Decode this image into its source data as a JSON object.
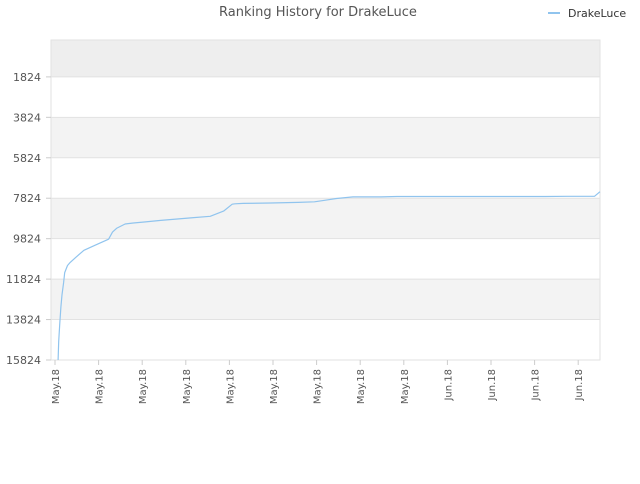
{
  "chart_data": {
    "type": "line",
    "title": "Ranking History for DrakeLuce",
    "legend_position": "top-right",
    "grid": true,
    "banding": true,
    "y_inverted": true,
    "ylim": [
      15824,
      0
    ],
    "yticks": [
      1824,
      3824,
      5824,
      7824,
      9824,
      11824,
      13824,
      15824
    ],
    "xtick_labels": [
      "May.18",
      "May.18",
      "May.18",
      "May.18",
      "May.18",
      "May.18",
      "May.18",
      "May.18",
      "May.18",
      "Jun.18",
      "Jun.18",
      "Jun.18",
      "Jun.18"
    ],
    "x_range": [
      0,
      100
    ],
    "colors": {
      "line": "#90c4ee",
      "band": "#f3f3f3",
      "band_top": "#eeeeee",
      "grid": "#e2e2e2",
      "text": "#555555",
      "title": "#555555"
    },
    "series": [
      {
        "name": "DrakeLuce",
        "x": [
          1.3,
          1.4,
          1.6,
          1.8,
          2.0,
          2.3,
          2.5,
          3.0,
          3.5,
          4.5,
          6.0,
          6.8,
          8.0,
          10.5,
          11.2,
          12.0,
          13.5,
          15.0,
          17.0,
          20.0,
          23.0,
          26.0,
          29.0,
          31.5,
          33.0,
          33.5,
          35.0,
          40.0,
          45.0,
          48.0,
          50.0,
          52.0,
          55.0,
          60.0,
          63.0,
          70.0,
          80.0,
          90.0,
          94.0,
          99.0,
          100.0
        ],
        "y": [
          15824,
          14900,
          14000,
          13200,
          12600,
          12000,
          11500,
          11150,
          11000,
          10750,
          10400,
          10300,
          10150,
          9850,
          9500,
          9300,
          9100,
          9050,
          9000,
          8920,
          8850,
          8780,
          8720,
          8450,
          8120,
          8100,
          8080,
          8060,
          8030,
          8000,
          7920,
          7840,
          7760,
          7760,
          7740,
          7740,
          7740,
          7740,
          7730,
          7730,
          7500
        ]
      }
    ]
  }
}
